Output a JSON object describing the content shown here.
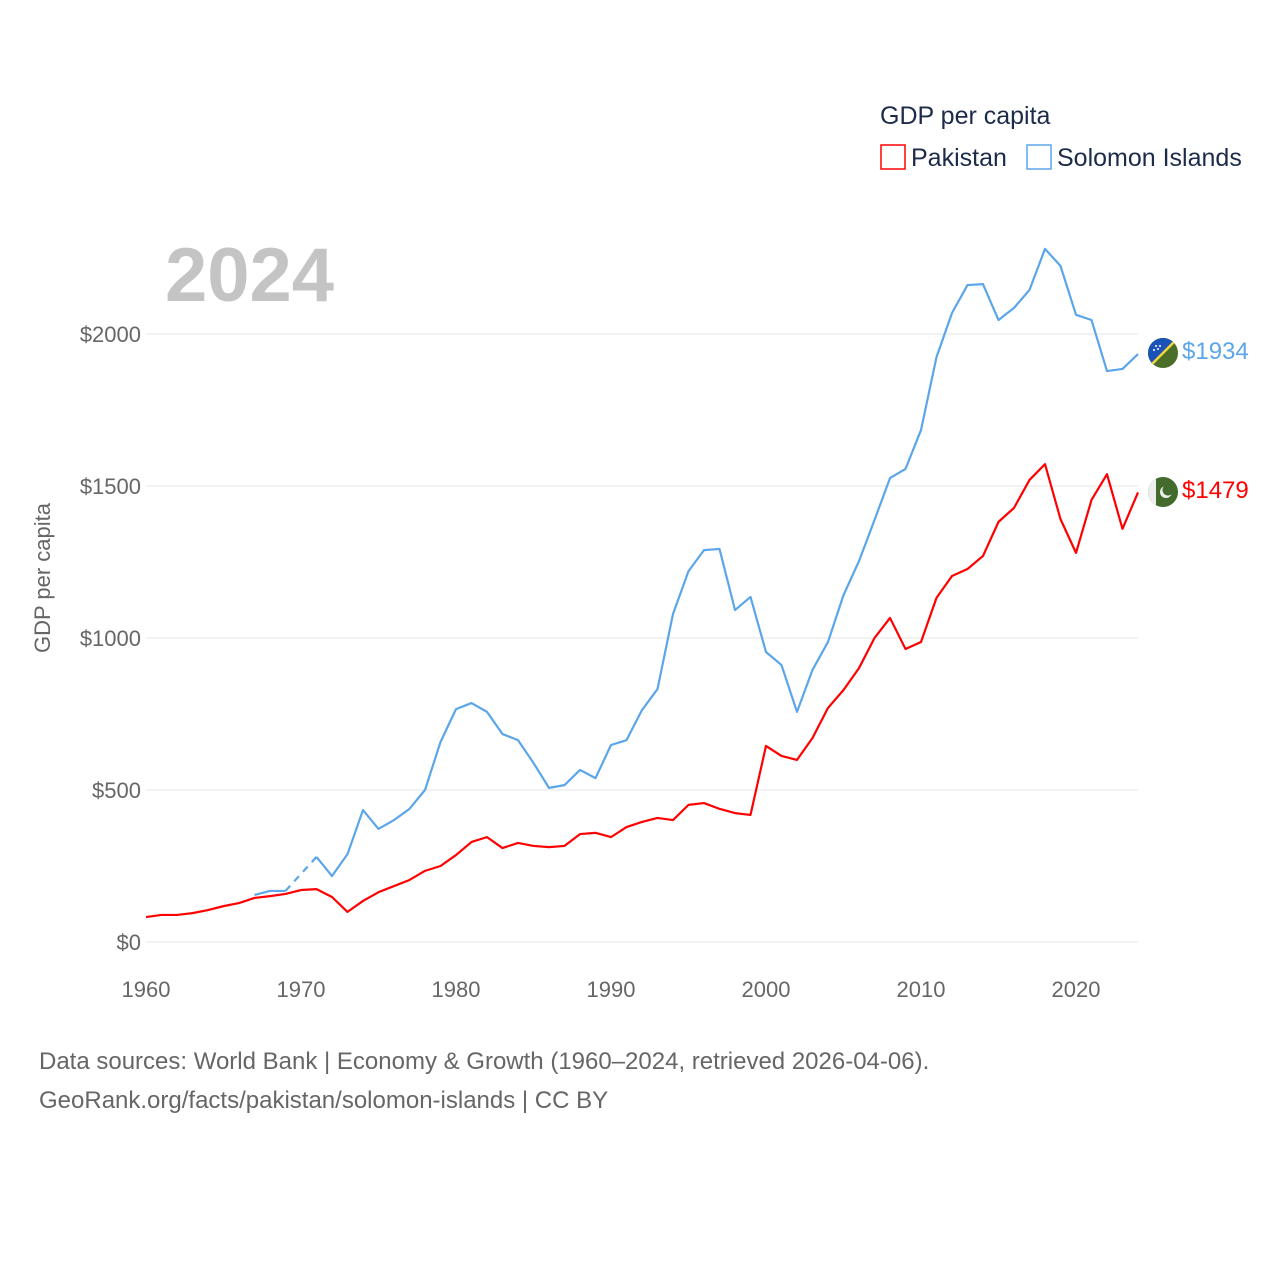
{
  "chart_data": {
    "type": "line",
    "title": "GDP per capita",
    "ylabel": "GDP per capita",
    "xlabel": "",
    "year_label": "2024",
    "xlim": [
      1960,
      2024
    ],
    "ylim": [
      0,
      2000
    ],
    "x_ticks": [
      1960,
      1970,
      1980,
      1990,
      2000,
      2010,
      2020
    ],
    "y_ticks": [
      0,
      500,
      1000,
      1500,
      2000
    ],
    "y_tick_labels": [
      "$0",
      "$500",
      "$1000",
      "$1500",
      "$2000"
    ],
    "grid": true,
    "legend_position": "top-right",
    "series": [
      {
        "name": "Pakistan",
        "color": "#ff0000",
        "start_year": 1960,
        "end_label": "$1479",
        "flag": "pakistan-flag",
        "values": [
          82,
          89,
          89,
          95,
          105,
          118,
          128,
          145,
          151,
          158,
          171,
          174,
          148,
          99,
          135,
          164,
          184,
          204,
          234,
          250,
          286,
          329,
          345,
          309,
          326,
          316,
          312,
          316,
          355,
          359,
          345,
          378,
          395,
          408,
          401,
          451,
          457,
          438,
          424,
          418,
          645,
          612,
          599,
          671,
          770,
          829,
          901,
          1000,
          1066,
          964,
          987,
          1132,
          1204,
          1227,
          1270,
          1382,
          1428,
          1520,
          1572,
          1391,
          1280,
          1454,
          1539,
          1359,
          1479
        ]
      },
      {
        "name": "Solomon Islands",
        "color": "#5ba6ea",
        "start_year": 1967,
        "end_label": "$1934",
        "flag": "solomon-islands-flag",
        "values": [
          155,
          168,
          168,
          null,
          280,
          217,
          289,
          434,
          372,
          401,
          438,
          500,
          658,
          766,
          786,
          757,
          684,
          664,
          589,
          507,
          516,
          566,
          539,
          648,
          664,
          763,
          832,
          1079,
          1220,
          1289,
          1293,
          1092,
          1135,
          954,
          911,
          757,
          895,
          987,
          1141,
          1253,
          1388,
          1526,
          1556,
          1684,
          1924,
          2069,
          2161,
          2164,
          2046,
          2086,
          2145,
          2280,
          2224,
          2063,
          2046,
          1878,
          1885,
          1934
        ]
      }
    ]
  },
  "footer": {
    "line1": "Data sources: World Bank | Economy & Growth (1960–2024, retrieved 2026-04-06).",
    "line2": "GeoRank.org/facts/pakistan/solomon-islands | CC BY"
  }
}
